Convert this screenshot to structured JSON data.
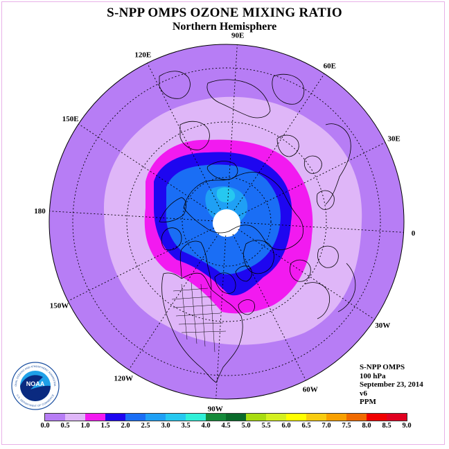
{
  "title": "S-NPP OMPS OZONE MIXING RATIO",
  "subtitle": "Northern Hemisphere",
  "lon_labels": [
    {
      "text": "90E",
      "lon": 90
    },
    {
      "text": "60E",
      "lon": 60
    },
    {
      "text": "30E",
      "lon": 30
    },
    {
      "text": "0",
      "lon": 0
    },
    {
      "text": "30W",
      "lon": -30
    },
    {
      "text": "60W",
      "lon": -60
    },
    {
      "text": "90W",
      "lon": -90
    },
    {
      "text": "120W",
      "lon": -120
    },
    {
      "text": "150W",
      "lon": -150
    },
    {
      "text": "180",
      "lon": 180
    },
    {
      "text": "150E",
      "lon": 150
    },
    {
      "text": "120E",
      "lon": 120
    }
  ],
  "info": {
    "line1": "S-NPP OMPS",
    "line2": "100 hPa",
    "line3": "September 23, 2014",
    "line4": "v6",
    "line5": "PPM"
  },
  "colorbar": {
    "ticks": [
      "0.0",
      "0.5",
      "1.0",
      "1.5",
      "2.0",
      "2.5",
      "3.0",
      "3.5",
      "4.0",
      "4.5",
      "5.0",
      "5.5",
      "6.0",
      "6.5",
      "7.0",
      "7.5",
      "8.0",
      "8.5",
      "9.0"
    ],
    "colors": [
      "#b77df5",
      "#dfb6f8",
      "#f21af0",
      "#1e06f0",
      "#1a6ef5",
      "#1fa0f5",
      "#26c8f0",
      "#30f0d8",
      "#148a3a",
      "#0a6a2a",
      "#a8dc10",
      "#d4f020",
      "#ffff00",
      "#f8cc10",
      "#f8a000",
      "#f06a00",
      "#f00000",
      "#e00020",
      "#805030"
    ]
  },
  "logo": {
    "text": "NOAA",
    "ring_top": "NATIONAL OCEANIC AND ATMOSPHERIC ADMINISTRATION",
    "ring_bottom": "U.S. DEPARTMENT OF COMMERCE"
  }
}
